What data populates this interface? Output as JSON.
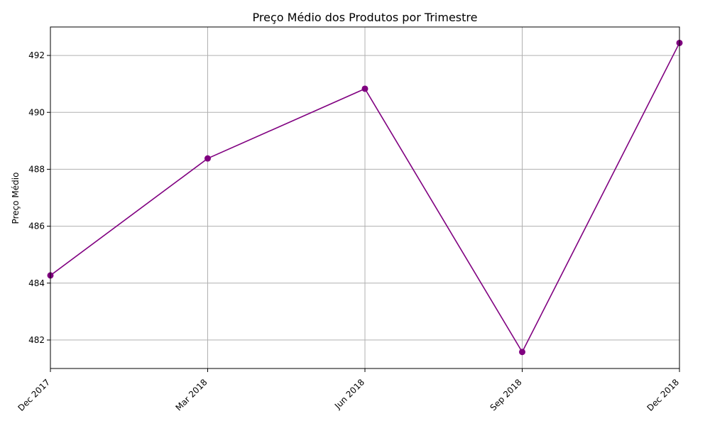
{
  "chart_data": {
    "type": "line",
    "title": "Preço Médio dos Produtos por Trimestre",
    "xlabel": "",
    "ylabel": "Preço Médio",
    "categories": [
      "Dec 2017",
      "Mar 2018",
      "Jun 2018",
      "Sep 2018",
      "Dec 2018"
    ],
    "series": [
      {
        "values": [
          484.27,
          488.38,
          490.83,
          481.58,
          492.44
        ]
      }
    ],
    "ylim": [
      481.0,
      493.0
    ],
    "yticks": [
      482,
      484,
      486,
      488,
      490,
      492
    ],
    "grid": true,
    "line_color": "#800080",
    "marker": "circle"
  }
}
